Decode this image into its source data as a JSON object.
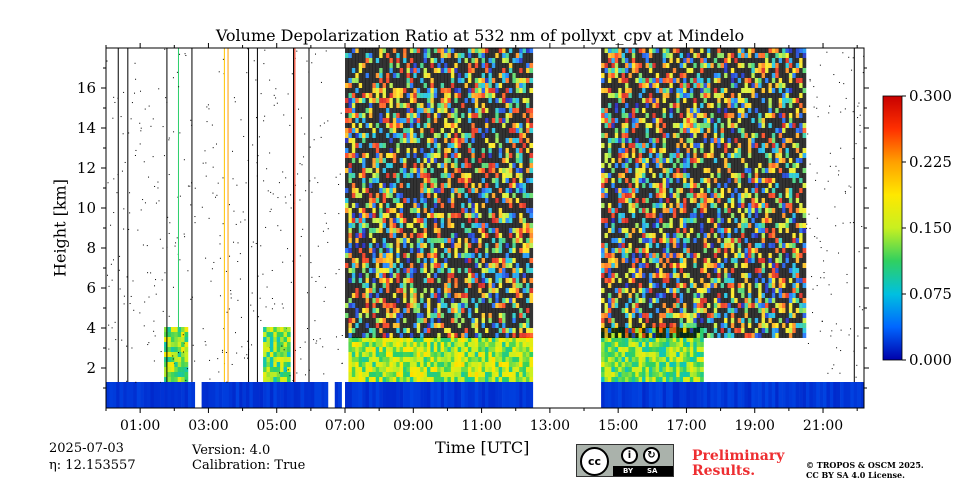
{
  "chart_data": {
    "type": "heatmap",
    "title": "Volume Depolarization Ratio at 532 nm of pollyxt_cpv at Mindelo",
    "xlabel": "Time [UTC]",
    "ylabel": "Height [km]",
    "xlim_hours": [
      0.0,
      22.2
    ],
    "ylim_km": [
      0.0,
      18.0
    ],
    "x_ticks": [
      {
        "hour": 1,
        "label": "01:00"
      },
      {
        "hour": 3,
        "label": "03:00"
      },
      {
        "hour": 5,
        "label": "05:00"
      },
      {
        "hour": 7,
        "label": "07:00"
      },
      {
        "hour": 9,
        "label": "09:00"
      },
      {
        "hour": 11,
        "label": "11:00"
      },
      {
        "hour": 13,
        "label": "13:00"
      },
      {
        "hour": 15,
        "label": "15:00"
      },
      {
        "hour": 17,
        "label": "17:00"
      },
      {
        "hour": 19,
        "label": "19:00"
      },
      {
        "hour": 21,
        "label": "21:00"
      }
    ],
    "y_ticks": [
      {
        "km": 2,
        "label": "2"
      },
      {
        "km": 4,
        "label": "4"
      },
      {
        "km": 6,
        "label": "6"
      },
      {
        "km": 8,
        "label": "8"
      },
      {
        "km": 10,
        "label": "10"
      },
      {
        "km": 12,
        "label": "12"
      },
      {
        "km": 14,
        "label": "14"
      },
      {
        "km": 16,
        "label": "16"
      }
    ],
    "colorbar": {
      "range": [
        0.0,
        0.3
      ],
      "ticks": [
        {
          "value": 0.0,
          "label": "0.000"
        },
        {
          "value": 0.075,
          "label": "0.075"
        },
        {
          "value": 0.15,
          "label": "0.150"
        },
        {
          "value": 0.225,
          "label": "0.225"
        },
        {
          "value": 0.3,
          "label": "0.300"
        }
      ],
      "colormap": [
        "#0000aa",
        "#0066ff",
        "#00c0e0",
        "#30d060",
        "#c8f020",
        "#ffe800",
        "#ffa000",
        "#ff3000",
        "#c80000"
      ]
    },
    "background_color": "#ffffff",
    "noise_color": "#000000",
    "boundary_layer": {
      "top_km": 1.3,
      "depol_ratio_approx": 0.02
    },
    "data_gaps_hours": [
      [
        2.55,
        2.75
      ],
      [
        6.45,
        6.6
      ],
      [
        6.85,
        6.95
      ],
      [
        12.4,
        14.45
      ]
    ],
    "noisy_segments_hours": [
      [
        6.95,
        12.4
      ],
      [
        14.45,
        20.5
      ]
    ],
    "dust_patches": [
      {
        "start_hour": 7.0,
        "end_hour": 12.4,
        "bottom_km": 1.3,
        "top_km": 3.5,
        "depol_ratio_approx": 0.17
      },
      {
        "start_hour": 14.45,
        "end_hour": 17.4,
        "bottom_km": 1.3,
        "top_km": 4.0,
        "depol_ratio_approx": 0.15
      },
      {
        "start_hour": 1.7,
        "end_hour": 2.4,
        "bottom_km": 1.3,
        "top_km": 4.0,
        "depol_ratio_approx": 0.16
      },
      {
        "start_hour": 4.6,
        "end_hour": 5.3,
        "bottom_km": 1.3,
        "top_km": 4.0,
        "depol_ratio_approx": 0.15
      }
    ]
  },
  "footer": {
    "date": "2025-07-03",
    "eta": "η: 12.153557",
    "version": "Version: 4.0",
    "calibration": "Calibration: True",
    "preliminary_line1": "Preliminary",
    "preliminary_line2": "Results.",
    "copyright_line1": "© TROPOS & OSCM 2025.",
    "copyright_line2": "CC BY SA 4.0 License.",
    "cc_badge_text": "cc",
    "cc_by": "BY",
    "cc_sa": "SA"
  }
}
